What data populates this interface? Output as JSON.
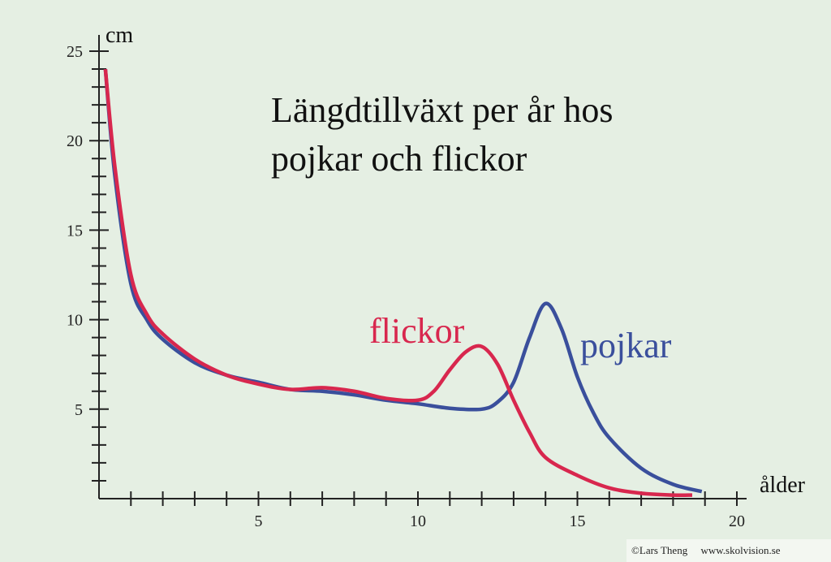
{
  "chart_data": {
    "type": "line",
    "title": [
      "Längdtillväxt per år hos",
      "pojkar och flickor"
    ],
    "y_label": "cm",
    "x_label": "ålder",
    "xlim": [
      0,
      20
    ],
    "ylim": [
      0,
      25
    ],
    "xticks": [
      5,
      10,
      15,
      20
    ],
    "yticks": [
      5,
      10,
      15,
      20,
      25
    ],
    "xminorticks": [
      1,
      2,
      3,
      4,
      6,
      7,
      8,
      9,
      11,
      12,
      13,
      14,
      16,
      17,
      18,
      19
    ],
    "yminorticks": [
      1,
      2,
      3,
      4,
      6,
      7,
      8,
      9,
      11,
      12,
      13,
      14,
      16,
      17,
      18,
      19,
      21,
      22,
      23,
      24
    ],
    "series": [
      {
        "name": "pojkar",
        "color": "#3a4f9c",
        "x": [
          0.2,
          0.5,
          1,
          1.5,
          2,
          3,
          4,
          5,
          6,
          7,
          8,
          9,
          10,
          11,
          12,
          12.5,
          13,
          13.5,
          14,
          14.5,
          15,
          15.5,
          16,
          17,
          18,
          18.9
        ],
        "values": [
          24,
          18,
          12,
          10,
          8.9,
          7.6,
          6.9,
          6.5,
          6.1,
          6.0,
          5.8,
          5.5,
          5.3,
          5.05,
          5.0,
          5.4,
          6.5,
          9,
          10.9,
          9.5,
          6.8,
          4.8,
          3.4,
          1.7,
          0.8,
          0.4
        ]
      },
      {
        "name": "flickor",
        "color": "#d8274e",
        "x": [
          0.2,
          0.5,
          1,
          1.5,
          2,
          3,
          4,
          5,
          6,
          7,
          8,
          9,
          10,
          10.5,
          11,
          11.5,
          12,
          12.5,
          13,
          13.5,
          14,
          15,
          16,
          17,
          18,
          18.6
        ],
        "values": [
          24,
          18.5,
          12.5,
          10.3,
          9.2,
          7.8,
          6.9,
          6.4,
          6.1,
          6.2,
          6.0,
          5.6,
          5.5,
          6.0,
          7.2,
          8.2,
          8.5,
          7.5,
          5.5,
          3.7,
          2.3,
          1.3,
          0.6,
          0.3,
          0.2,
          0.2
        ]
      }
    ],
    "credit": "©Lars Theng     www.skolvision.se"
  }
}
